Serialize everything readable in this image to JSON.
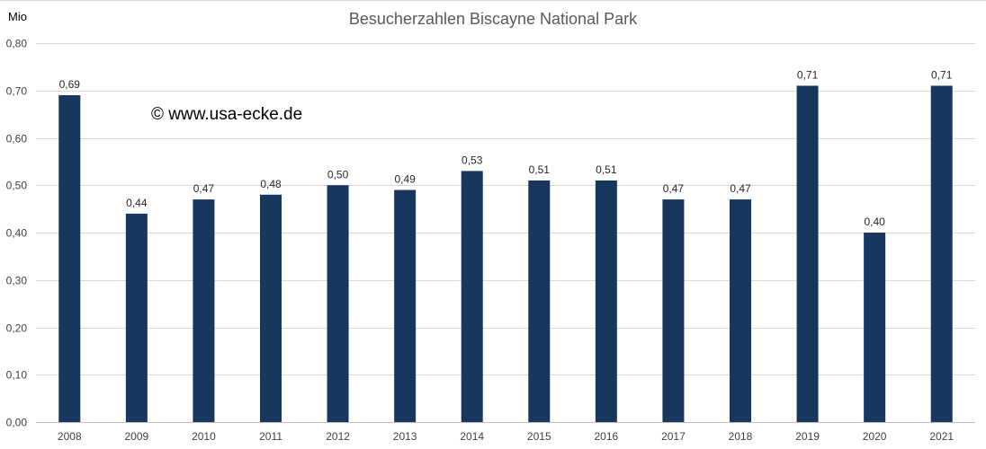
{
  "chart_data": {
    "type": "bar",
    "title": "Besucherzahlen Biscayne National Park",
    "ylabel": "Mio",
    "xlabel": "",
    "watermark": "© www.usa-ecke.de",
    "categories": [
      "2008",
      "2009",
      "2010",
      "2011",
      "2012",
      "2013",
      "2014",
      "2015",
      "2016",
      "2017",
      "2018",
      "2019",
      "2020",
      "2021"
    ],
    "values": [
      0.69,
      0.44,
      0.47,
      0.48,
      0.5,
      0.49,
      0.53,
      0.51,
      0.51,
      0.47,
      0.47,
      0.71,
      0.4,
      0.71
    ],
    "data_labels": [
      "0,69",
      "0,44",
      "0,47",
      "0,48",
      "0,50",
      "0,49",
      "0,53",
      "0,51",
      "0,51",
      "0,47",
      "0,47",
      "0,71",
      "0,40",
      "0,71"
    ],
    "ylim": [
      0,
      0.8
    ],
    "yticks": [
      0,
      0.1,
      0.2,
      0.3,
      0.4,
      0.5,
      0.6,
      0.7,
      0.8
    ],
    "ytick_labels": [
      "0,00",
      "0,10",
      "0,20",
      "0,30",
      "0,40",
      "0,50",
      "0,60",
      "0,70",
      "0,80"
    ],
    "grid": true,
    "legend": "none",
    "colors": {
      "bar": "#17375e",
      "grid": "#d9d9d9",
      "title": "#595959",
      "tick": "#404040"
    }
  }
}
